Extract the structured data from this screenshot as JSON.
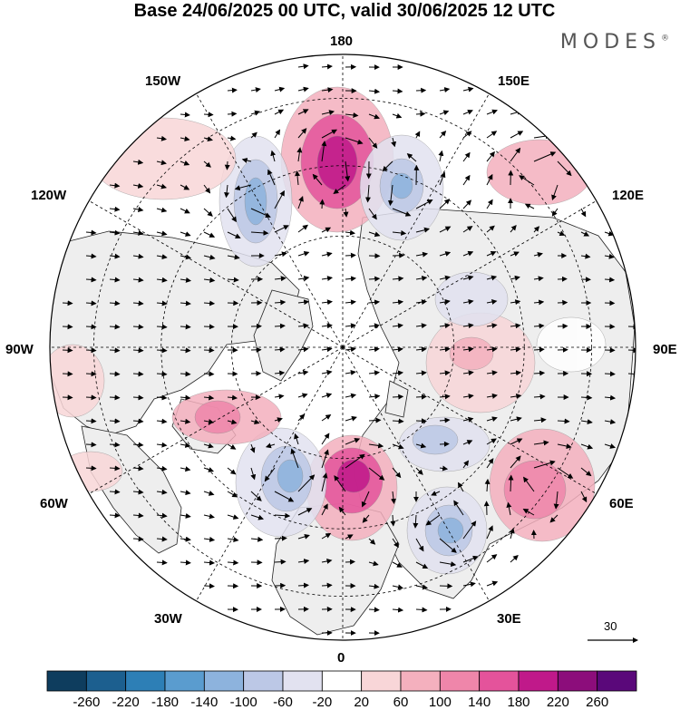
{
  "header": {
    "title": "Base 24/06/2025 00 UTC, valid 30/06/2025 12 UTC",
    "brand": "MODES",
    "brand_mark": "®"
  },
  "map": {
    "projection": "north-polar-stereographic",
    "longitude_labels": {
      "top": "180",
      "top_left": "150W",
      "top_right": "150E",
      "upper_left": "120W",
      "upper_right": "120E",
      "left": "90W",
      "right": "90E",
      "lower_left": "60W",
      "lower_right": "60E",
      "bottom_left": "30W",
      "bottom_right": "30E",
      "bottom": "0"
    },
    "reference_vector": {
      "label": "30"
    },
    "anomaly_centers": [
      {
        "sign": "positive",
        "region": "North Pacific / Bering",
        "level": 180
      },
      {
        "sign": "negative",
        "region": "Alaska / Gulf",
        "level": -140
      },
      {
        "sign": "negative",
        "region": "Chukchi / East Siberia",
        "level": -140
      },
      {
        "sign": "positive",
        "region": "North Sea / British Isles",
        "level": 180
      },
      {
        "sign": "negative",
        "region": "Central North Atlantic",
        "level": -140
      },
      {
        "sign": "negative",
        "region": "Black Sea / Turkey",
        "level": -140
      },
      {
        "sign": "positive",
        "region": "Caspian / Central Asia",
        "level": 100
      },
      {
        "sign": "negative",
        "region": "Scandinavia / Barents",
        "level": -60
      }
    ]
  },
  "colorbar": {
    "ticks": [
      "-260",
      "-220",
      "-180",
      "-140",
      "-100",
      "-60",
      "-20",
      "20",
      "60",
      "100",
      "140",
      "180",
      "220",
      "260"
    ],
    "colors": [
      "#0e3d5e",
      "#1c5f8f",
      "#2d7fb6",
      "#5a9ccf",
      "#8db3dd",
      "#bcc8e6",
      "#e2e2f0",
      "#ffffff",
      "#f8d6d8",
      "#f4b0be",
      "#ef86aa",
      "#e4539b",
      "#c0198a",
      "#8c0d7b",
      "#5a087a"
    ]
  }
}
